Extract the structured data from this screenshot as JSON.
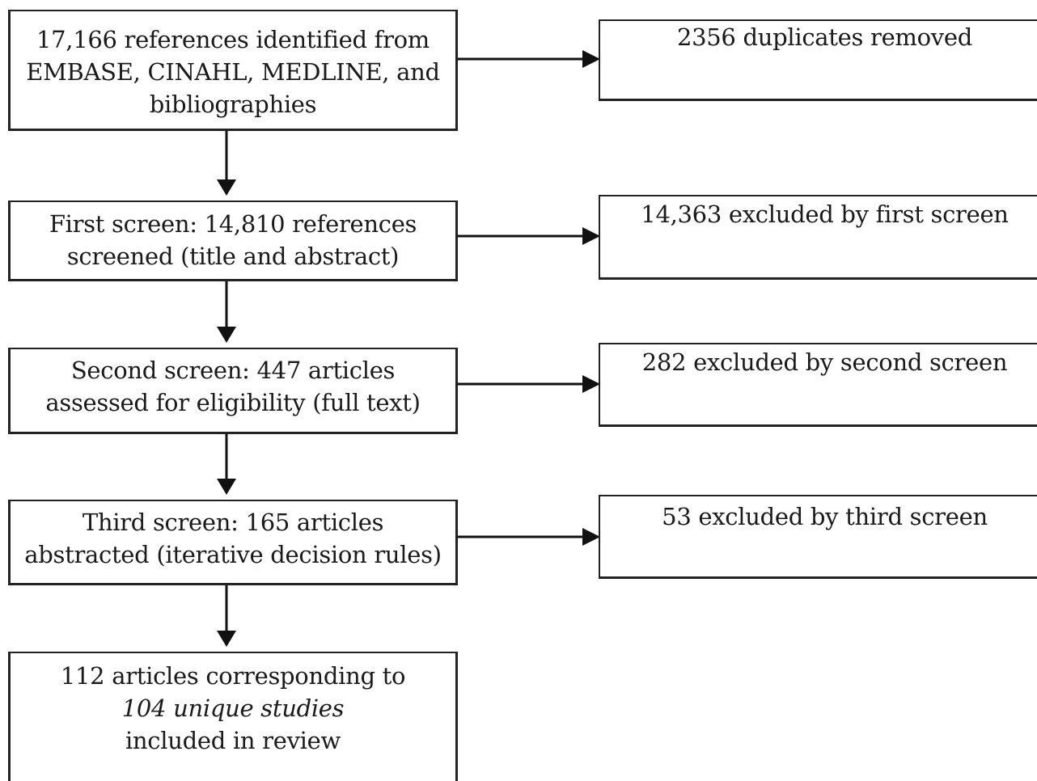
{
  "flow": {
    "identified": {
      "line1": "17,166 references identified from",
      "line2": "EMBASE, CINAHL, MEDLINE, and",
      "line3": "bibliographies"
    },
    "first_screen": {
      "line1": "First screen: 14,810 references",
      "line2": "screened (title and abstract)"
    },
    "second_screen": {
      "line1": "Second screen: 447 articles",
      "line2": "assessed for eligibility (full text)"
    },
    "third_screen": {
      "line1": "Third screen: 165 articles",
      "line2": "abstracted (iterative decision rules)"
    },
    "included": {
      "line1": "112 articles corresponding to",
      "line2_italic": "104 unique studies",
      "line3": "included in review"
    }
  },
  "exclusions": {
    "duplicates": "2356 duplicates removed",
    "first": "14,363 excluded by first screen",
    "second": "282 excluded by second screen",
    "third": "53 excluded by third screen"
  }
}
